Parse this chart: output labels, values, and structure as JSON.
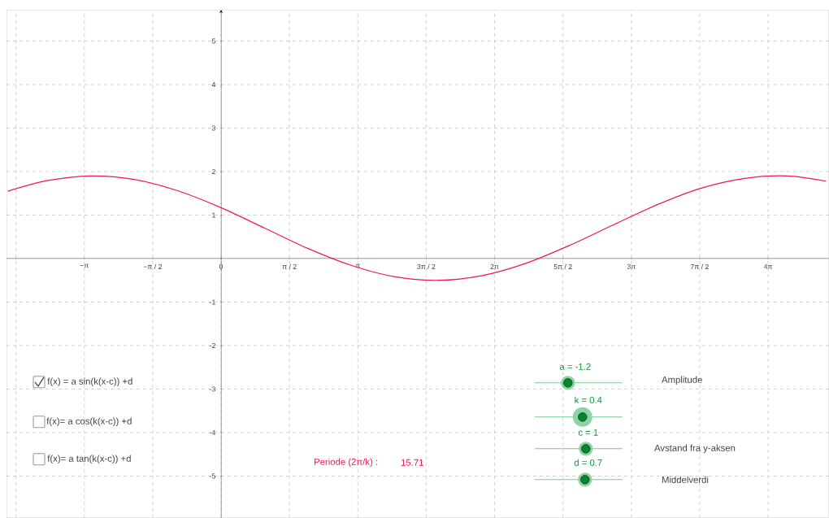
{
  "chart_data": {
    "type": "line",
    "x": [
      -4.9,
      -4,
      -3,
      -2,
      -1,
      0,
      1,
      2,
      3,
      4,
      5,
      6,
      7,
      8,
      9,
      10,
      11,
      12,
      13,
      13.9
    ],
    "series": [
      {
        "color": "#f0194b",
        "values": [
          1.55,
          1.79,
          1.9,
          1.82,
          1.56,
          1.17,
          0.7,
          0.23,
          -0.16,
          -0.42,
          -0.5,
          -0.39,
          -0.11,
          0.3,
          0.77,
          1.23,
          1.61,
          1.84,
          1.9,
          1.78
        ]
      }
    ],
    "xlim": [
      -4.93,
      13.96
    ],
    "ylim": [
      -5.96,
      5.72
    ],
    "xticks": [
      {
        "value": -4.7124,
        "label": null
      },
      {
        "value": -3.1416,
        "label": "−π"
      },
      {
        "value": -1.5708,
        "label": "−π / 2"
      },
      {
        "value": 0,
        "label": "0"
      },
      {
        "value": 1.5708,
        "label": "π / 2"
      },
      {
        "value": 3.1416,
        "label": "π"
      },
      {
        "value": 4.7124,
        "label": "3π / 2"
      },
      {
        "value": 6.2832,
        "label": "2π"
      },
      {
        "value": 7.854,
        "label": "5π / 2"
      },
      {
        "value": 9.4248,
        "label": "3π"
      },
      {
        "value": 10.9956,
        "label": "7π / 2"
      },
      {
        "value": 12.5664,
        "label": "4π"
      }
    ],
    "yticks": [
      -5,
      -4,
      -3,
      -2,
      -1,
      1,
      2,
      3,
      4,
      5
    ],
    "grid": true,
    "marker": "none",
    "line_style": "solid",
    "annotations": [
      "f(x) = a sin(k(x-c)) +d",
      "f(x)= a cos(k(x-c)) +d",
      "f(x)= a tan(k(x-c)) +d",
      "Periode (2π/k) :",
      "15.71",
      "a = -1.2",
      "k = 0.4",
      "c = 1",
      "d = 0.7",
      "Amplitude",
      "Avstand fra y-aksen",
      "Middelverdi"
    ]
  }
}
